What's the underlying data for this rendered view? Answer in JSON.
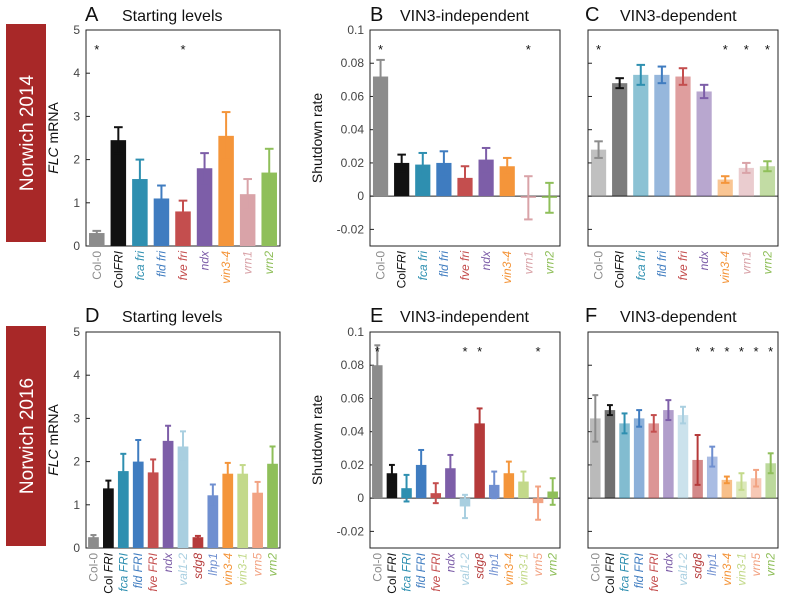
{
  "row_labels": [
    "Norwich 2014",
    "Norwich 2016"
  ],
  "colors": {
    "Col-0": "#8c8c8c",
    "ColFRI": "#111111",
    "fca": "#2e8fb0",
    "fld": "#3f7cc0",
    "fve": "#c44e4e",
    "ndx": "#7d5ea8",
    "vin3": "#f4953a",
    "vrn1": "#d9a3a8",
    "vrn2": "#8fbf5a",
    "val1": "#a9cfe0",
    "sdg8": "#b53a3a",
    "lhp1": "#6f8fd0",
    "vin3-1": "#c3d98a",
    "vrn5": "#f2a383",
    "rowbar": "#a82828"
  },
  "chart_data": [
    {
      "id": "A",
      "type": "bar",
      "letter": "A",
      "title": "Starting levels",
      "ylabel_italic": "FLC",
      "ylabel_rest": " mRNA",
      "ylim": [
        0,
        5
      ],
      "yticks": [
        0,
        1,
        2,
        3,
        4,
        5
      ],
      "yticklabels": [
        "0",
        "1",
        "2",
        "3",
        "4",
        "5"
      ],
      "categories": [
        "Col-0",
        "ColFRI",
        "fca fri",
        "fld fri",
        "fve fri",
        "ndx",
        "vin3-4",
        "vrn1",
        "vrn2"
      ],
      "cat_parts": [
        [
          [
            "Col-0",
            false
          ]
        ],
        [
          [
            "Col",
            false
          ],
          [
            "FRI",
            true
          ]
        ],
        [
          [
            "fca fri",
            true
          ]
        ],
        [
          [
            "fld fri",
            true
          ]
        ],
        [
          [
            "fve fri",
            true
          ]
        ],
        [
          [
            "ndx",
            true
          ]
        ],
        [
          [
            "vin3-4",
            true
          ]
        ],
        [
          [
            "vrn1",
            true
          ]
        ],
        [
          [
            "vrn2",
            true
          ]
        ]
      ],
      "cat_colors": [
        "#8c8c8c",
        "#111111",
        "#2e8fb0",
        "#3f7cc0",
        "#c44e4e",
        "#7d5ea8",
        "#f4953a",
        "#d9a3a8",
        "#8fbf5a"
      ],
      "values": [
        0.3,
        2.45,
        1.55,
        1.1,
        0.8,
        1.8,
        2.55,
        1.2,
        1.7
      ],
      "errors": [
        0.05,
        0.3,
        0.45,
        0.3,
        0.25,
        0.35,
        0.55,
        0.35,
        0.55
      ],
      "alphas": [
        1,
        1,
        1,
        1,
        1,
        1,
        1,
        1,
        1
      ],
      "stars": [
        0,
        4
      ]
    },
    {
      "id": "B",
      "type": "bar",
      "letter": "B",
      "title": "VIN3-independent",
      "ylabel": "Shutdown rate",
      "ylim": [
        -0.03,
        0.1
      ],
      "yticks": [
        -0.02,
        0,
        0.02,
        0.04,
        0.06,
        0.08,
        0.1
      ],
      "yticklabels": [
        "-0.02",
        "0",
        "0.02",
        "0.04",
        "0.06",
        "0.08",
        "0.1"
      ],
      "categories": [
        "Col-0",
        "ColFRI",
        "fca fri",
        "fld fri",
        "fve fri",
        "ndx",
        "vin3-4",
        "vrn1",
        "vrn2"
      ],
      "cat_parts": [
        [
          [
            "Col-0",
            false
          ]
        ],
        [
          [
            "Col",
            false
          ],
          [
            "FRI",
            true
          ]
        ],
        [
          [
            "fca fri",
            true
          ]
        ],
        [
          [
            "fld fri",
            true
          ]
        ],
        [
          [
            "fve fri",
            true
          ]
        ],
        [
          [
            "ndx",
            true
          ]
        ],
        [
          [
            "vin3-4",
            true
          ]
        ],
        [
          [
            "vrn1",
            true
          ]
        ],
        [
          [
            "vrn2",
            true
          ]
        ]
      ],
      "cat_colors": [
        "#8c8c8c",
        "#111111",
        "#2e8fb0",
        "#3f7cc0",
        "#c44e4e",
        "#7d5ea8",
        "#f4953a",
        "#d9a3a8",
        "#8fbf5a"
      ],
      "values": [
        0.072,
        0.02,
        0.019,
        0.02,
        0.011,
        0.022,
        0.018,
        -0.001,
        -0.001
      ],
      "errors": [
        0.01,
        0.005,
        0.007,
        0.007,
        0.007,
        0.007,
        0.005,
        0.013,
        0.009
      ],
      "alphas": [
        1,
        1,
        1,
        1,
        1,
        1,
        1,
        1,
        1
      ],
      "stars": [
        0,
        7
      ]
    },
    {
      "id": "C",
      "type": "bar",
      "letter": "C",
      "title": "VIN3-dependent",
      "ylim": [
        -0.03,
        0.1
      ],
      "yticks": [
        -0.02,
        0,
        0.02,
        0.04,
        0.06,
        0.08,
        0.1
      ],
      "categories": [
        "Col-0",
        "ColFRI",
        "fca fri",
        "fld fri",
        "fve fri",
        "ndx",
        "vin3-4",
        "vrn1",
        "vrn2"
      ],
      "cat_parts": [
        [
          [
            "Col-0",
            false
          ]
        ],
        [
          [
            "Col",
            false
          ],
          [
            "FRI",
            true
          ]
        ],
        [
          [
            "fca fri",
            true
          ]
        ],
        [
          [
            "fld fri",
            true
          ]
        ],
        [
          [
            "fve fri",
            true
          ]
        ],
        [
          [
            "ndx",
            true
          ]
        ],
        [
          [
            "vin3-4",
            true
          ]
        ],
        [
          [
            "vrn1",
            true
          ]
        ],
        [
          [
            "vrn2",
            true
          ]
        ]
      ],
      "cat_colors": [
        "#8c8c8c",
        "#111111",
        "#2e8fb0",
        "#3f7cc0",
        "#c44e4e",
        "#7d5ea8",
        "#f4953a",
        "#d9a3a8",
        "#8fbf5a"
      ],
      "values": [
        0.028,
        0.068,
        0.073,
        0.073,
        0.072,
        0.063,
        0.01,
        0.017,
        0.018
      ],
      "errors": [
        0.005,
        0.003,
        0.006,
        0.005,
        0.005,
        0.004,
        0.002,
        0.003,
        0.003
      ],
      "alphas": [
        0.55,
        0.55,
        0.55,
        0.55,
        0.55,
        0.55,
        0.55,
        0.55,
        0.55
      ],
      "stars": [
        0,
        6,
        7,
        8
      ]
    },
    {
      "id": "D",
      "type": "bar",
      "letter": "D",
      "title": "Starting levels",
      "ylabel_italic": "FLC",
      "ylabel_rest": " mRNA",
      "ylim": [
        0,
        5
      ],
      "yticks": [
        0,
        1,
        2,
        3,
        4,
        5
      ],
      "yticklabels": [
        "0",
        "1",
        "2",
        "3",
        "4",
        "5"
      ],
      "categories": [
        "Col-0",
        "ColFRI",
        "fca FRI",
        "fld FRI",
        "fve FRI",
        "ndx",
        "val1-2",
        "sdg8",
        "lhp1",
        "vin3-4",
        "vin3-1",
        "vrn5",
        "vrn2"
      ],
      "cat_parts": [
        [
          [
            "Col-0",
            false
          ]
        ],
        [
          [
            "Col ",
            false
          ],
          [
            "FRI",
            true
          ]
        ],
        [
          [
            "fca FRI",
            true
          ]
        ],
        [
          [
            "fld FRI",
            true
          ]
        ],
        [
          [
            "fve FRI",
            true
          ]
        ],
        [
          [
            "ndx",
            true
          ]
        ],
        [
          [
            "val1-2",
            true
          ]
        ],
        [
          [
            "sdg8",
            true
          ]
        ],
        [
          [
            "lhp1",
            true
          ]
        ],
        [
          [
            "vin3-4",
            true
          ]
        ],
        [
          [
            "vin3-1",
            true
          ]
        ],
        [
          [
            "vrn5",
            true
          ]
        ],
        [
          [
            "vrn2",
            true
          ]
        ]
      ],
      "cat_colors": [
        "#8c8c8c",
        "#111111",
        "#2e8fb0",
        "#3f7cc0",
        "#c44e4e",
        "#7d5ea8",
        "#a9cfe0",
        "#b53a3a",
        "#6f8fd0",
        "#f4953a",
        "#c3d98a",
        "#f2a383",
        "#8fbf5a"
      ],
      "values": [
        0.25,
        1.38,
        1.78,
        2.0,
        1.75,
        2.48,
        2.35,
        0.25,
        1.22,
        1.72,
        1.72,
        1.28,
        1.95
      ],
      "errors": [
        0.05,
        0.18,
        0.4,
        0.5,
        0.3,
        0.35,
        0.35,
        0.03,
        0.25,
        0.25,
        0.2,
        0.25,
        0.4
      ],
      "alphas": [
        1,
        1,
        1,
        1,
        1,
        1,
        1,
        1,
        1,
        1,
        1,
        1,
        1
      ],
      "stars": []
    },
    {
      "id": "E",
      "type": "bar",
      "letter": "E",
      "title": "VIN3-independent",
      "ylabel": "Shutdown rate",
      "ylim": [
        -0.03,
        0.1
      ],
      "yticks": [
        -0.02,
        0,
        0.02,
        0.04,
        0.06,
        0.08,
        0.1
      ],
      "yticklabels": [
        "-0.02",
        "0",
        "0.02",
        "0.04",
        "0.06",
        "0.08",
        "0.1"
      ],
      "categories": [
        "Col-0",
        "ColFRI",
        "fca FRI",
        "fld FRI",
        "fve FRI",
        "ndx",
        "val1-2",
        "sdg8",
        "lhp1",
        "vin3-4",
        "vin3-1",
        "vrn5",
        "vrn2"
      ],
      "cat_parts": [
        [
          [
            "Col-0",
            false
          ]
        ],
        [
          [
            "Col ",
            false
          ],
          [
            "FRI",
            true
          ]
        ],
        [
          [
            "fca FRI",
            true
          ]
        ],
        [
          [
            "fld FRI",
            true
          ]
        ],
        [
          [
            "fve FRI",
            true
          ]
        ],
        [
          [
            "ndx",
            true
          ]
        ],
        [
          [
            "val1-2",
            true
          ]
        ],
        [
          [
            "sdg8",
            true
          ]
        ],
        [
          [
            "lhp1",
            true
          ]
        ],
        [
          [
            "vin3-4",
            true
          ]
        ],
        [
          [
            "vin3-1",
            true
          ]
        ],
        [
          [
            "vrn5",
            true
          ]
        ],
        [
          [
            "vrn2",
            true
          ]
        ]
      ],
      "cat_colors": [
        "#8c8c8c",
        "#111111",
        "#2e8fb0",
        "#3f7cc0",
        "#c44e4e",
        "#7d5ea8",
        "#a9cfe0",
        "#b53a3a",
        "#6f8fd0",
        "#f4953a",
        "#c3d98a",
        "#f2a383",
        "#8fbf5a"
      ],
      "values": [
        0.08,
        0.015,
        0.006,
        0.02,
        0.003,
        0.018,
        -0.005,
        0.045,
        0.008,
        0.015,
        0.01,
        -0.003,
        0.004
      ],
      "errors": [
        0.012,
        0.005,
        0.008,
        0.009,
        0.006,
        0.008,
        0.007,
        0.009,
        0.008,
        0.007,
        0.006,
        0.01,
        0.008
      ],
      "alphas": [
        1,
        1,
        1,
        1,
        1,
        1,
        1,
        1,
        1,
        1,
        1,
        1,
        1
      ],
      "stars": [
        0,
        6,
        7,
        11
      ]
    },
    {
      "id": "F",
      "type": "bar",
      "letter": "F",
      "title": "VIN3-dependent",
      "ylim": [
        -0.03,
        0.1
      ],
      "yticks": [
        -0.02,
        0,
        0.02,
        0.04,
        0.06,
        0.08,
        0.1
      ],
      "categories": [
        "Col-0",
        "ColFRI",
        "fca FRI",
        "fld FRI",
        "fve FRI",
        "ndx",
        "val1-2",
        "sdg8",
        "lhp1",
        "vin3-4",
        "vin3-1",
        "vrn5",
        "vrn2"
      ],
      "cat_parts": [
        [
          [
            "Col-0",
            false
          ]
        ],
        [
          [
            "Col ",
            false
          ],
          [
            "FRI",
            true
          ]
        ],
        [
          [
            "fca FRI",
            true
          ]
        ],
        [
          [
            "fld FRI",
            true
          ]
        ],
        [
          [
            "fve FRI",
            true
          ]
        ],
        [
          [
            "ndx",
            true
          ]
        ],
        [
          [
            "val1-2",
            true
          ]
        ],
        [
          [
            "sdg8",
            true
          ]
        ],
        [
          [
            "lhp1",
            true
          ]
        ],
        [
          [
            "vin3-4",
            true
          ]
        ],
        [
          [
            "vin3-1",
            true
          ]
        ],
        [
          [
            "vrn5",
            true
          ]
        ],
        [
          [
            "vrn2",
            true
          ]
        ]
      ],
      "cat_colors": [
        "#8c8c8c",
        "#111111",
        "#2e8fb0",
        "#3f7cc0",
        "#c44e4e",
        "#7d5ea8",
        "#a9cfe0",
        "#b53a3a",
        "#6f8fd0",
        "#f4953a",
        "#c3d98a",
        "#f2a383",
        "#8fbf5a"
      ],
      "values": [
        0.048,
        0.053,
        0.045,
        0.048,
        0.045,
        0.053,
        0.05,
        0.023,
        0.025,
        0.011,
        0.01,
        0.012,
        0.021
      ],
      "errors": [
        0.014,
        0.003,
        0.006,
        0.005,
        0.005,
        0.006,
        0.005,
        0.015,
        0.006,
        0.002,
        0.005,
        0.005,
        0.006
      ],
      "alphas": [
        0.6,
        0.6,
        0.6,
        0.6,
        0.6,
        0.6,
        0.6,
        0.6,
        0.6,
        0.6,
        0.6,
        0.6,
        0.6
      ],
      "stars": [
        7,
        8,
        9,
        10,
        11,
        12
      ]
    }
  ]
}
